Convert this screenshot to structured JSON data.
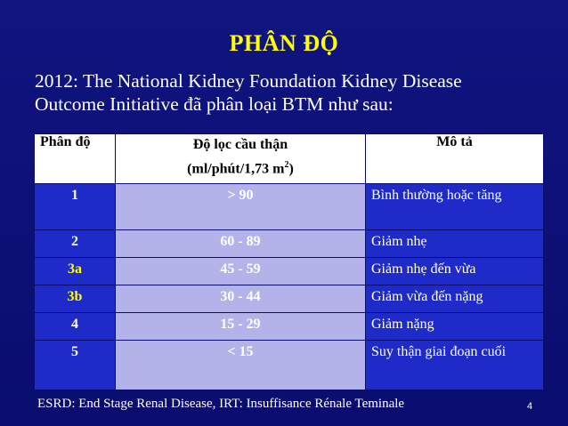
{
  "slide": {
    "title": "PHÂN ĐỘ",
    "subtitle_line1": "2012: The National Kidney Foundation Kidney Disease",
    "subtitle_line2": "Outcome Initiative đã phân loại BTM như sau:",
    "footer": "ESRD: End Stage Renal Disease, IRT: Insuffisance Rénale Teminale",
    "page_number": "4"
  },
  "colors": {
    "background": "#0b0f78",
    "title": "#ffff00",
    "stage_cell": "#1f2bc8",
    "gfr_cell": "#b3b3ea",
    "header_cell": "#ffffff"
  },
  "table": {
    "headers": {
      "stage": "Phân độ",
      "gfr_line1": "Độ lọc cầu thận",
      "gfr_line2_prefix": "(ml/phút/1,73 m",
      "gfr_sup": "2",
      "gfr_line2_suffix": ")",
      "description": "Mô tả"
    },
    "rows": [
      {
        "stage": "1",
        "stage_color": "#ffffff",
        "gfr": "> 90",
        "description": "Bình thường hoặc tăng"
      },
      {
        "stage": "2",
        "stage_color": "#ffffff",
        "gfr": "60 - 89",
        "description": "Giảm nhẹ"
      },
      {
        "stage": "3a",
        "stage_color": "#ffff00",
        "gfr": "45 - 59",
        "description": "Giảm nhẹ đến vừa"
      },
      {
        "stage": "3b",
        "stage_color": "#ffff00",
        "gfr": "30 - 44",
        "description": "Giảm vừa đến nặng"
      },
      {
        "stage": "4",
        "stage_color": "#ffffff",
        "gfr": "15 - 29",
        "description": "Giảm nặng"
      },
      {
        "stage": "5",
        "stage_color": "#ffffff",
        "gfr": "< 15",
        "description": "Suy thận giai đoạn cuối"
      }
    ]
  }
}
